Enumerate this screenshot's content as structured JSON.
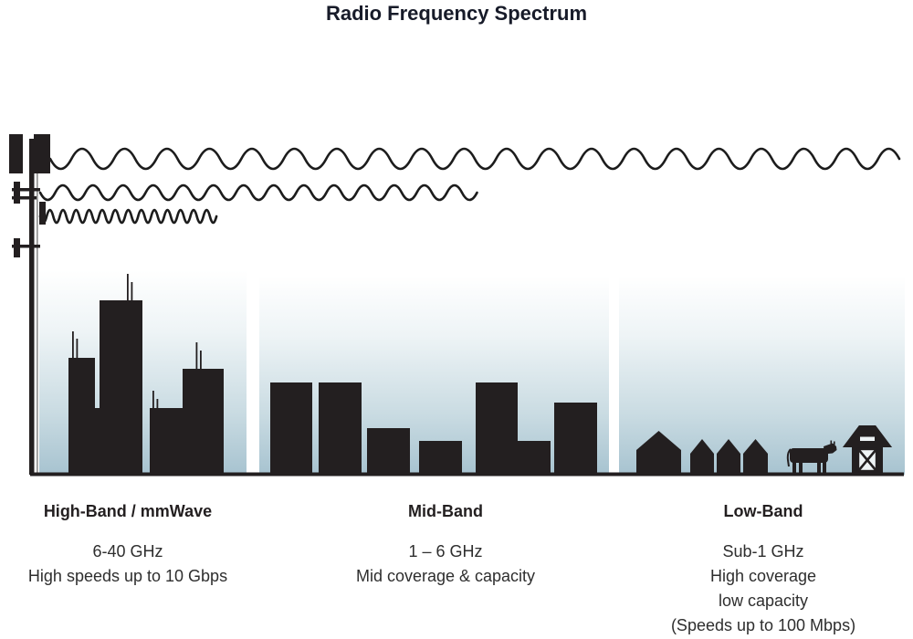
{
  "title": "Radio Frequency Spectrum",
  "colors": {
    "ink": "#231f20",
    "title_text": "#171b29",
    "body_text": "#2e2e2e",
    "sky_top": "#ffffff",
    "sky_bottom": "#a7c3d0"
  },
  "icons": [
    "cell-tower-icon",
    "skyscraper-icon",
    "house-icon",
    "cow-icon",
    "barn-icon",
    "radio-wave-icon"
  ],
  "bands": [
    {
      "name": "High-Band / mmWave",
      "frequency": "6-40 GHz",
      "details": [
        "High speeds up to 10 Gbps"
      ]
    },
    {
      "name": "Mid-Band",
      "frequency": "1 – 6 GHz",
      "details": [
        "Mid coverage & capacity"
      ]
    },
    {
      "name": "Low-Band",
      "frequency": "Sub-1 GHz",
      "details": [
        "High coverage",
        "low capacity",
        "(Speeds up to 100 Mbps)"
      ]
    }
  ],
  "waves": [
    {
      "name": "low-frequency-wave",
      "reaches": "Low-Band",
      "centerY": 174,
      "amplitude": 11,
      "wavelength": 46.5,
      "xStart": 55,
      "xEnd": 985
    },
    {
      "name": "mid-frequency-wave",
      "reaches": "Mid-Band",
      "centerY": 211,
      "amplitude": 8,
      "wavelength": 33,
      "xStart": 44,
      "xEnd": 528
    },
    {
      "name": "high-frequency-wave",
      "reaches": "High-Band",
      "centerY": 237,
      "amplitude": 7,
      "wavelength": 14.3,
      "xStart": 44,
      "xEnd": 240
    }
  ]
}
